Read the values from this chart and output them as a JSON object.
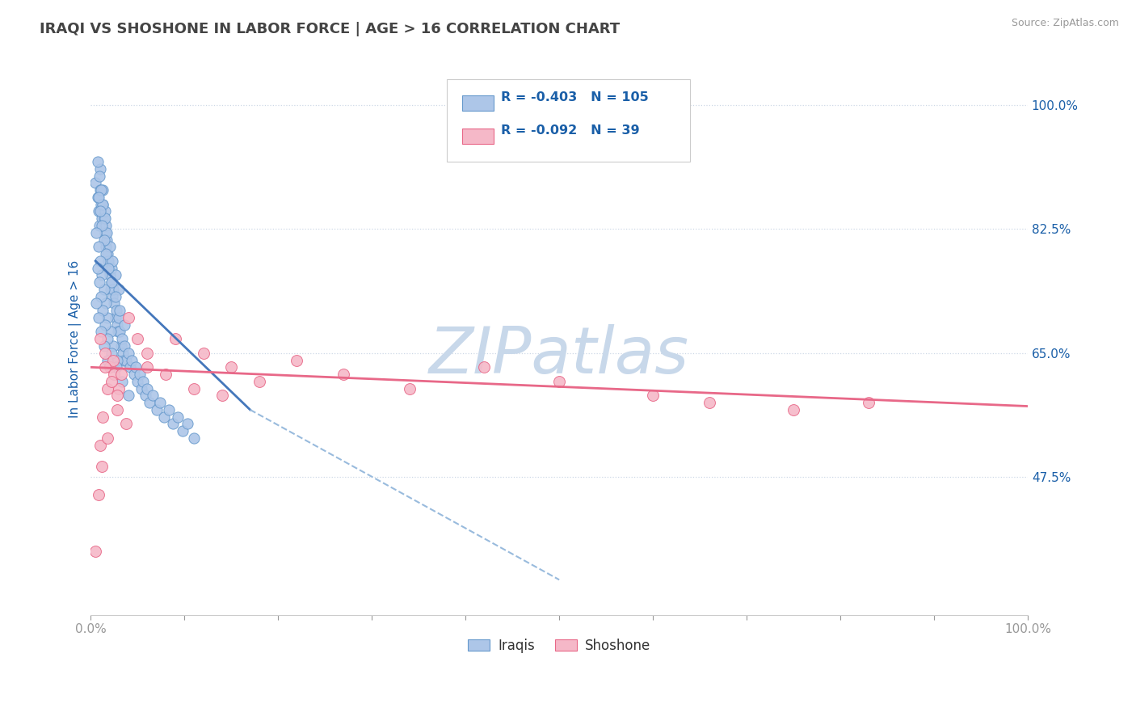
{
  "title": "IRAQI VS SHOSHONE IN LABOR FORCE | AGE > 16 CORRELATION CHART",
  "source_text": "Source: ZipAtlas.com",
  "ylabel": "In Labor Force | Age > 16",
  "xlim": [
    0.0,
    1.0
  ],
  "ylim": [
    0.28,
    1.06
  ],
  "yticks": [
    0.475,
    0.65,
    0.825,
    1.0
  ],
  "ytick_labels": [
    "47.5%",
    "65.0%",
    "82.5%",
    "100.0%"
  ],
  "xticks": [
    0.0,
    0.1,
    0.2,
    0.3,
    0.4,
    0.5,
    0.6,
    0.7,
    0.8,
    0.9,
    1.0
  ],
  "xtick_labels": [
    "0.0%",
    "",
    "",
    "",
    "",
    "",
    "",
    "",
    "",
    "",
    "100.0%"
  ],
  "iraqis_color": "#adc6e8",
  "shoshone_color": "#f5b8c8",
  "iraqis_edge_color": "#6699cc",
  "shoshone_edge_color": "#e86888",
  "trend_iraqis_solid_color": "#4477bb",
  "trend_iraqis_dash_color": "#99bbdd",
  "trend_shoshone_color": "#e86888",
  "R_iraqis": -0.403,
  "N_iraqis": 105,
  "R_shoshone": -0.092,
  "N_shoshone": 39,
  "legend_color": "#1a5fa8",
  "axis_label_color": "#1a5fa8",
  "title_color": "#444444",
  "watermark": "ZIPatlas",
  "watermark_color": "#c8d8ea",
  "background_color": "#ffffff",
  "grid_color": "#c8d4e4",
  "iraqis_x": [
    0.005,
    0.007,
    0.008,
    0.009,
    0.01,
    0.01,
    0.011,
    0.012,
    0.013,
    0.013,
    0.014,
    0.015,
    0.015,
    0.016,
    0.016,
    0.017,
    0.018,
    0.018,
    0.019,
    0.02,
    0.021,
    0.022,
    0.022,
    0.023,
    0.024,
    0.025,
    0.026,
    0.027,
    0.028,
    0.029,
    0.03,
    0.031,
    0.032,
    0.033,
    0.034,
    0.035,
    0.036,
    0.038,
    0.04,
    0.042,
    0.044,
    0.046,
    0.048,
    0.05,
    0.052,
    0.054,
    0.056,
    0.058,
    0.06,
    0.063,
    0.066,
    0.07,
    0.074,
    0.078,
    0.083,
    0.088,
    0.093,
    0.098,
    0.103,
    0.11,
    0.007,
    0.009,
    0.011,
    0.013,
    0.015,
    0.017,
    0.02,
    0.023,
    0.026,
    0.03,
    0.008,
    0.01,
    0.012,
    0.014,
    0.016,
    0.019,
    0.022,
    0.026,
    0.031,
    0.036,
    0.006,
    0.008,
    0.01,
    0.012,
    0.014,
    0.016,
    0.018,
    0.021,
    0.024,
    0.028,
    0.007,
    0.009,
    0.011,
    0.013,
    0.015,
    0.018,
    0.022,
    0.027,
    0.033,
    0.04,
    0.006,
    0.008,
    0.011,
    0.014,
    0.018
  ],
  "iraqis_y": [
    0.89,
    0.87,
    0.85,
    0.83,
    0.91,
    0.88,
    0.86,
    0.84,
    0.88,
    0.86,
    0.84,
    0.82,
    0.85,
    0.83,
    0.8,
    0.81,
    0.79,
    0.77,
    0.78,
    0.76,
    0.74,
    0.77,
    0.75,
    0.73,
    0.74,
    0.72,
    0.7,
    0.71,
    0.69,
    0.68,
    0.7,
    0.68,
    0.66,
    0.67,
    0.65,
    0.64,
    0.66,
    0.64,
    0.65,
    0.63,
    0.64,
    0.62,
    0.63,
    0.61,
    0.62,
    0.6,
    0.61,
    0.59,
    0.6,
    0.58,
    0.59,
    0.57,
    0.58,
    0.56,
    0.57,
    0.55,
    0.56,
    0.54,
    0.55,
    0.53,
    0.92,
    0.9,
    0.88,
    0.86,
    0.84,
    0.82,
    0.8,
    0.78,
    0.76,
    0.74,
    0.87,
    0.85,
    0.83,
    0.81,
    0.79,
    0.77,
    0.75,
    0.73,
    0.71,
    0.69,
    0.82,
    0.8,
    0.78,
    0.76,
    0.74,
    0.72,
    0.7,
    0.68,
    0.66,
    0.64,
    0.77,
    0.75,
    0.73,
    0.71,
    0.69,
    0.67,
    0.65,
    0.63,
    0.61,
    0.59,
    0.72,
    0.7,
    0.68,
    0.66,
    0.64
  ],
  "shoshone_x": [
    0.005,
    0.01,
    0.015,
    0.02,
    0.025,
    0.03,
    0.04,
    0.05,
    0.06,
    0.013,
    0.018,
    0.024,
    0.032,
    0.01,
    0.015,
    0.022,
    0.028,
    0.09,
    0.12,
    0.15,
    0.18,
    0.22,
    0.27,
    0.34,
    0.42,
    0.5,
    0.6,
    0.66,
    0.75,
    0.83,
    0.008,
    0.012,
    0.018,
    0.028,
    0.038,
    0.06,
    0.08,
    0.11,
    0.14
  ],
  "shoshone_y": [
    0.37,
    0.52,
    0.65,
    0.63,
    0.62,
    0.6,
    0.7,
    0.67,
    0.65,
    0.56,
    0.6,
    0.64,
    0.62,
    0.67,
    0.63,
    0.61,
    0.59,
    0.67,
    0.65,
    0.63,
    0.61,
    0.64,
    0.62,
    0.6,
    0.63,
    0.61,
    0.59,
    0.58,
    0.57,
    0.58,
    0.45,
    0.49,
    0.53,
    0.57,
    0.55,
    0.63,
    0.62,
    0.6,
    0.59
  ],
  "iraqis_solid_trend_x": [
    0.005,
    0.17
  ],
  "iraqis_solid_trend_y": [
    0.78,
    0.57
  ],
  "iraqis_dash_trend_x": [
    0.17,
    0.5
  ],
  "iraqis_dash_trend_y": [
    0.57,
    0.33
  ],
  "shoshone_trend_x": [
    0.0,
    1.0
  ],
  "shoshone_trend_y": [
    0.63,
    0.575
  ]
}
